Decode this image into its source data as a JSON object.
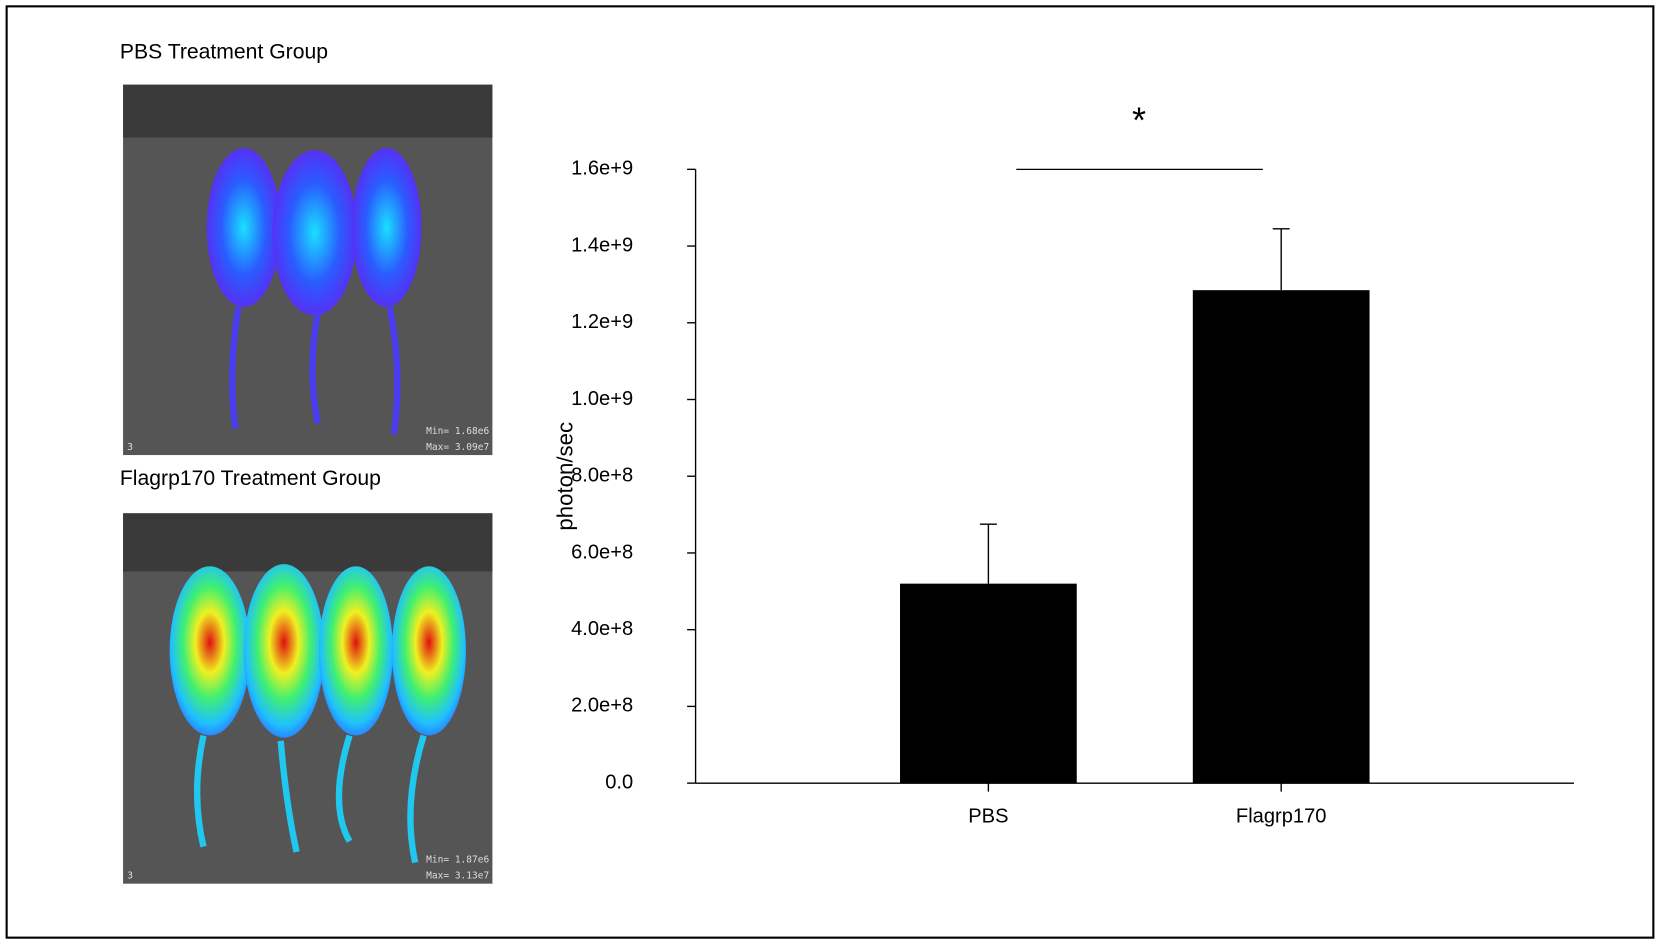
{
  "panels": [
    {
      "title": "PBS Treatment Group",
      "min_label": "Min= 1.68e6",
      "max_label": "Max= 3.09e7",
      "corner_label": "3"
    },
    {
      "title": "Flagrp170 Treatment Group",
      "min_label": "Min= 1.87e6",
      "max_label": "Max= 3.13e7",
      "corner_label": "3"
    }
  ],
  "chart_data": {
    "type": "bar",
    "ylabel": "photon/sec",
    "categories": [
      "PBS",
      "Flagrp170"
    ],
    "values": [
      520000000,
      1285000000
    ],
    "errors": [
      155000000,
      160000000
    ],
    "color": "#000000",
    "ylim": [
      0,
      1600000000
    ],
    "yticks": [
      {
        "value": 0,
        "label": "0.0"
      },
      {
        "value": 200000000,
        "label": "2.0e+8"
      },
      {
        "value": 400000000,
        "label": "4.0e+8"
      },
      {
        "value": 600000000,
        "label": "6.0e+8"
      },
      {
        "value": 800000000,
        "label": "8.0e+8"
      },
      {
        "value": 1000000000,
        "label": "1.0e+9"
      },
      {
        "value": 1200000000,
        "label": "1.2e+9"
      },
      {
        "value": 1400000000,
        "label": "1.4e+9"
      },
      {
        "value": 1600000000,
        "label": "1.6e+9"
      }
    ],
    "annotations": [
      "*"
    ]
  }
}
